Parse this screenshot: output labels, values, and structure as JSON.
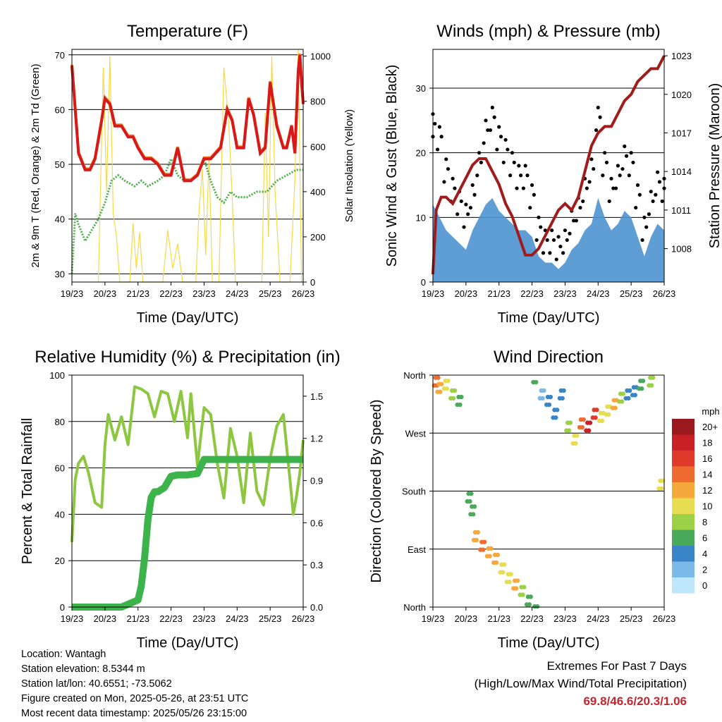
{
  "info": {
    "location": "Location: Wantagh",
    "elevation": "Station elevation: 8.5344 m",
    "latlon": "Station lat/lon: 40.6551; -73.5062",
    "created": "Figure created on Mon, 2025-05-26, at 23:51 UTC",
    "recent": "Most recent data timestamp: 2025/05/26 23:15:00"
  },
  "extremes": {
    "line1": "Extremes For Past 7 Days",
    "line2": "(High/Low/Max Wind/Total Precipitation)",
    "values": "69.8/46.6/20.3/1.06"
  },
  "colors": {
    "temp2m": "#d7191c",
    "temp9m": "#f57c20",
    "dewpoint": "#4daf4a",
    "solar": "#f7d84a",
    "wind": "#4e94d0",
    "gust": "#000000",
    "pressure": "#a01c1c",
    "rh": "#8dc63f",
    "precip": "#3cb44b"
  },
  "chart_data": [
    {
      "type": "line",
      "title": "Temperature (F)",
      "xlabel": "Time (Day/UTC)",
      "ylabel": "2m & 9m T (Red, Orange) & 2m Td (Green)",
      "y2label": "Solar Insolation (Yellow)",
      "x_ticks": [
        "19/23",
        "20/23",
        "21/23",
        "22/23",
        "23/23",
        "24/23",
        "25/23",
        "26/23"
      ],
      "ylim": [
        28.5,
        71
      ],
      "y_ticks": [
        30,
        40,
        50,
        60,
        70
      ],
      "y2lim": [
        0,
        1030
      ],
      "y2_ticks": [
        0,
        200,
        400,
        600,
        800,
        1000
      ],
      "x_unit": "days since 19/23",
      "series": [
        {
          "name": "2m T",
          "axis": "left",
          "color": "#d7191c",
          "x": [
            0,
            0.1,
            0.2,
            0.4,
            0.55,
            0.7,
            0.9,
            1.0,
            1.15,
            1.3,
            1.5,
            1.7,
            1.85,
            2.0,
            2.2,
            2.4,
            2.6,
            2.8,
            3.0,
            3.2,
            3.4,
            3.6,
            3.8,
            4.0,
            4.2,
            4.5,
            4.7,
            4.85,
            5.0,
            5.2,
            5.35,
            5.5,
            5.7,
            5.85,
            6.0,
            6.2,
            6.4,
            6.5,
            6.65,
            6.75,
            6.85,
            6.9,
            6.95,
            7.0
          ],
          "y": [
            68,
            60,
            52,
            49,
            49,
            51,
            58,
            62,
            61,
            57,
            57,
            55,
            55,
            53,
            51,
            51,
            50,
            48,
            48,
            53,
            47,
            47,
            48,
            51,
            51,
            53,
            60,
            58,
            53,
            53,
            62,
            59,
            52,
            53,
            65,
            57,
            53,
            53,
            57,
            52,
            67,
            70,
            65,
            61
          ]
        },
        {
          "name": "2m Td",
          "axis": "left",
          "color": "#4daf4a",
          "x": [
            0,
            0.1,
            0.2,
            0.4,
            0.6,
            0.8,
            1.0,
            1.2,
            1.4,
            1.6,
            1.9,
            2.1,
            2.3,
            2.6,
            2.8,
            3.0,
            3.2,
            3.4,
            3.6,
            3.8,
            4.0,
            4.2,
            4.4,
            4.6,
            4.8,
            5.0,
            5.3,
            5.6,
            5.9,
            6.2,
            6.5,
            6.8,
            7.0
          ],
          "y": [
            30,
            41,
            39,
            36,
            38,
            40,
            43,
            47,
            48,
            47,
            46,
            47,
            46,
            47,
            48,
            51,
            48,
            47,
            47,
            48,
            51,
            47,
            44,
            43,
            45,
            44,
            44,
            45,
            45,
            47,
            48,
            49,
            49
          ]
        },
        {
          "name": "Solar",
          "axis": "right",
          "color": "#f7d84a",
          "x": [
            0.8,
            0.95,
            1.05,
            1.15,
            1.25,
            1.35,
            1.45,
            1.55,
            1.75,
            1.85,
            1.95,
            2.05,
            2.15,
            2.75,
            2.9,
            3.05,
            3.2,
            3.35,
            3.55,
            3.75,
            3.85,
            3.95,
            4.05,
            4.15,
            4.25,
            4.45,
            4.6,
            4.75,
            4.85,
            4.95,
            5.05,
            5.2,
            5.35,
            5.55,
            5.75,
            5.85,
            5.95,
            6.05,
            6.15,
            6.3,
            6.45,
            6.6,
            6.75,
            6.85,
            6.95
          ],
          "y": [
            0,
            950,
            400,
            1000,
            300,
            200,
            0,
            0,
            0,
            260,
            60,
            220,
            0,
            0,
            230,
            60,
            170,
            0,
            0,
            0,
            320,
            500,
            120,
            560,
            0,
            0,
            950,
            700,
            380,
            0,
            0,
            0,
            0,
            0,
            0,
            750,
            200,
            1000,
            400,
            0,
            0,
            0,
            450,
            1030,
            0
          ]
        }
      ]
    },
    {
      "type": "scatter",
      "title": "Winds (mph) & Pressure (mb)",
      "xlabel": "Time (Day/UTC)",
      "ylabel": "Sonic Wind & Gust (Blue, Black)",
      "y2label": "Station Pressure (Maroon)",
      "x_ticks": [
        "19/23",
        "20/23",
        "21/23",
        "22/23",
        "23/23",
        "24/23",
        "25/23",
        "26/23"
      ],
      "ylim": [
        0,
        36
      ],
      "y_ticks": [
        0,
        10,
        20,
        30
      ],
      "y2lim": [
        1005.4,
        1023.5
      ],
      "y2_ticks": [
        1008,
        1011,
        1014,
        1017,
        1020,
        1023
      ],
      "series": [
        {
          "name": "Gust",
          "axis": "left",
          "color": "#000000",
          "x": [
            0,
            0.2,
            0.4,
            0.6,
            0.8,
            1.0,
            1.2,
            1.4,
            1.6,
            1.8,
            2.0,
            2.2,
            2.4,
            2.6,
            2.8,
            3.0,
            3.2,
            3.4,
            3.6,
            3.8,
            4.0,
            4.2,
            4.4,
            4.6,
            4.8,
            5.0,
            5.2,
            5.4,
            5.6,
            5.8,
            6.0,
            6.2,
            6.4,
            6.6,
            6.8,
            7.0
          ],
          "y": [
            24,
            22,
            17,
            14,
            12,
            10,
            13,
            18,
            23,
            25,
            22,
            20,
            18,
            16,
            16,
            13,
            8,
            6,
            6,
            5,
            6,
            9,
            11,
            14,
            17,
            25,
            18,
            14,
            16,
            19,
            18,
            13,
            8,
            12,
            15,
            14
          ]
        },
        {
          "name": "Wind",
          "axis": "left",
          "color": "#4e94d0",
          "x": [
            0,
            0.2,
            0.4,
            0.6,
            0.8,
            1.0,
            1.2,
            1.4,
            1.6,
            1.8,
            2.0,
            2.2,
            2.4,
            2.6,
            2.8,
            3.0,
            3.2,
            3.4,
            3.6,
            3.8,
            4.0,
            4.2,
            4.4,
            4.6,
            4.8,
            5.0,
            5.2,
            5.4,
            5.6,
            5.8,
            6.0,
            6.2,
            6.4,
            6.6,
            6.8,
            7.0
          ],
          "y": [
            12,
            10,
            8,
            7,
            6,
            5,
            8,
            10,
            12,
            13,
            11,
            10,
            9,
            8,
            8,
            7,
            4,
            3,
            3,
            2,
            3,
            5,
            6,
            8,
            9,
            13,
            10,
            8,
            9,
            11,
            10,
            7,
            4,
            7,
            9,
            8
          ]
        },
        {
          "name": "Pressure",
          "axis": "right",
          "color": "#a01c1c",
          "x": [
            0,
            0.1,
            0.25,
            0.4,
            0.6,
            0.8,
            1.0,
            1.2,
            1.4,
            1.6,
            1.8,
            2.0,
            2.2,
            2.4,
            2.6,
            2.8,
            3.0,
            3.2,
            3.4,
            3.6,
            3.8,
            4.0,
            4.2,
            4.4,
            4.6,
            4.8,
            5.0,
            5.2,
            5.4,
            5.6,
            5.8,
            6.0,
            6.2,
            6.4,
            6.6,
            6.8,
            7.0
          ],
          "y": [
            1006,
            1011,
            1012,
            1012,
            1011.5,
            1012.5,
            1013.5,
            1014.5,
            1015,
            1015,
            1014,
            1013,
            1011.5,
            1010.5,
            1009,
            1007.5,
            1007.5,
            1008,
            1009,
            1010,
            1011,
            1011.5,
            1011,
            1012,
            1014,
            1016,
            1017,
            1017.5,
            1017.5,
            1018.5,
            1019.5,
            1020,
            1021,
            1021.5,
            1022,
            1022,
            1023
          ]
        }
      ]
    },
    {
      "type": "line",
      "title": "Relative Humidity (%) & Precipitation (in)",
      "xlabel": "Time (Day/UTC)",
      "ylabel": "Percent & Total Rainfall",
      "x_ticks": [
        "19/23",
        "20/23",
        "21/23",
        "22/23",
        "23/23",
        "24/23",
        "25/23",
        "26/23"
      ],
      "ylim": [
        0,
        100
      ],
      "y_ticks": [
        0,
        20,
        40,
        60,
        80,
        100
      ],
      "y2lim": [
        0,
        1.65
      ],
      "y2_ticks": [
        "0.0",
        "0.3",
        "0.6",
        "0.9",
        "1.2",
        "1.5"
      ],
      "series": [
        {
          "name": "RH",
          "axis": "left",
          "color": "#8dc63f",
          "x": [
            0,
            0.1,
            0.2,
            0.35,
            0.5,
            0.7,
            0.9,
            1.0,
            1.1,
            1.3,
            1.5,
            1.7,
            1.9,
            2.1,
            2.3,
            2.5,
            2.7,
            2.9,
            3.1,
            3.3,
            3.5,
            3.6,
            3.8,
            4.0,
            4.2,
            4.4,
            4.6,
            4.8,
            5.0,
            5.2,
            5.4,
            5.6,
            5.8,
            6.0,
            6.2,
            6.4,
            6.6,
            6.7,
            6.8,
            6.9,
            7.0
          ],
          "y": [
            28,
            55,
            62,
            65,
            58,
            45,
            43,
            70,
            83,
            72,
            82,
            70,
            95,
            94,
            92,
            82,
            93,
            92,
            80,
            93,
            73,
            92,
            61,
            86,
            83,
            62,
            47,
            77,
            65,
            45,
            75,
            50,
            44,
            64,
            78,
            83,
            55,
            40,
            48,
            58,
            72
          ]
        },
        {
          "name": "Total Rainfall",
          "axis": "right",
          "color": "#3cb44b",
          "x": [
            0,
            1.5,
            1.8,
            2.0,
            2.1,
            2.2,
            2.3,
            2.4,
            2.5,
            2.6,
            2.8,
            3.0,
            3.2,
            3.5,
            3.8,
            4.0,
            4.5,
            5.0,
            6.0,
            7.0
          ],
          "y": [
            0,
            0,
            0.03,
            0.05,
            0.15,
            0.35,
            0.62,
            0.78,
            0.82,
            0.82,
            0.85,
            0.93,
            0.94,
            0.94,
            0.95,
            1.05,
            1.05,
            1.05,
            1.05,
            1.05
          ]
        }
      ]
    },
    {
      "type": "scatter",
      "title": "Wind Direction",
      "xlabel": "Time (Day/UTC)",
      "ylabel": "Direction (Colored By Speed)",
      "x_ticks": [
        "19/23",
        "20/23",
        "21/23",
        "22/23",
        "23/23",
        "24/23",
        "25/23",
        "26/23"
      ],
      "y_ticks": [
        "North",
        "West",
        "South",
        "East",
        "North"
      ],
      "ylim": [
        0,
        360
      ],
      "legend_title": "mph",
      "legend_labels": [
        "20+",
        "18",
        "16",
        "14",
        "12",
        "10",
        "8",
        "6",
        "4",
        "2",
        "0"
      ],
      "legend_colors": [
        "#99191c",
        "#c92026",
        "#e03b2a",
        "#f06b30",
        "#f7a83c",
        "#e6dd53",
        "#9cd047",
        "#4ba95c",
        "#3a85c5",
        "#7bb9e8",
        "#bde6fa"
      ],
      "legend_placement": "right",
      "points": [
        {
          "x": 0.1,
          "dir": 350,
          "spd": 14
        },
        {
          "x": 0.2,
          "dir": 340,
          "spd": 12
        },
        {
          "x": 0.4,
          "dir": 345,
          "spd": 10
        },
        {
          "x": 0.6,
          "dir": 330,
          "spd": 8
        },
        {
          "x": 0.8,
          "dir": 320,
          "spd": 6
        },
        {
          "x": 1.1,
          "dir": 170,
          "spd": 6
        },
        {
          "x": 1.2,
          "dir": 150,
          "spd": 5
        },
        {
          "x": 1.3,
          "dir": 110,
          "spd": 12
        },
        {
          "x": 1.5,
          "dir": 95,
          "spd": 14
        },
        {
          "x": 1.7,
          "dir": 85,
          "spd": 12
        },
        {
          "x": 1.9,
          "dir": 75,
          "spd": 12
        },
        {
          "x": 2.1,
          "dir": 60,
          "spd": 10
        },
        {
          "x": 2.3,
          "dir": 45,
          "spd": 10
        },
        {
          "x": 2.5,
          "dir": 35,
          "spd": 12
        },
        {
          "x": 2.7,
          "dir": 25,
          "spd": 8
        },
        {
          "x": 2.9,
          "dir": 10,
          "spd": 6
        },
        {
          "x": 3.1,
          "dir": 355,
          "spd": 6
        },
        {
          "x": 3.3,
          "dir": 330,
          "spd": 2
        },
        {
          "x": 3.5,
          "dir": 320,
          "spd": 3
        },
        {
          "x": 3.7,
          "dir": 300,
          "spd": 4
        },
        {
          "x": 3.9,
          "dir": 330,
          "spd": 4
        },
        {
          "x": 4.1,
          "dir": 280,
          "spd": 8
        },
        {
          "x": 4.3,
          "dir": 260,
          "spd": 10
        },
        {
          "x": 4.5,
          "dir": 285,
          "spd": 14
        },
        {
          "x": 4.7,
          "dir": 280,
          "spd": 18
        },
        {
          "x": 4.9,
          "dir": 300,
          "spd": 16
        },
        {
          "x": 5.1,
          "dir": 295,
          "spd": 10
        },
        {
          "x": 5.3,
          "dir": 305,
          "spd": 10
        },
        {
          "x": 5.5,
          "dir": 315,
          "spd": 12
        },
        {
          "x": 5.7,
          "dir": 325,
          "spd": 8
        },
        {
          "x": 5.9,
          "dir": 330,
          "spd": 4
        },
        {
          "x": 6.1,
          "dir": 335,
          "spd": 4
        },
        {
          "x": 6.3,
          "dir": 345,
          "spd": 6
        },
        {
          "x": 6.6,
          "dir": 350,
          "spd": 8
        },
        {
          "x": 6.9,
          "dir": 190,
          "spd": 10
        }
      ]
    }
  ]
}
